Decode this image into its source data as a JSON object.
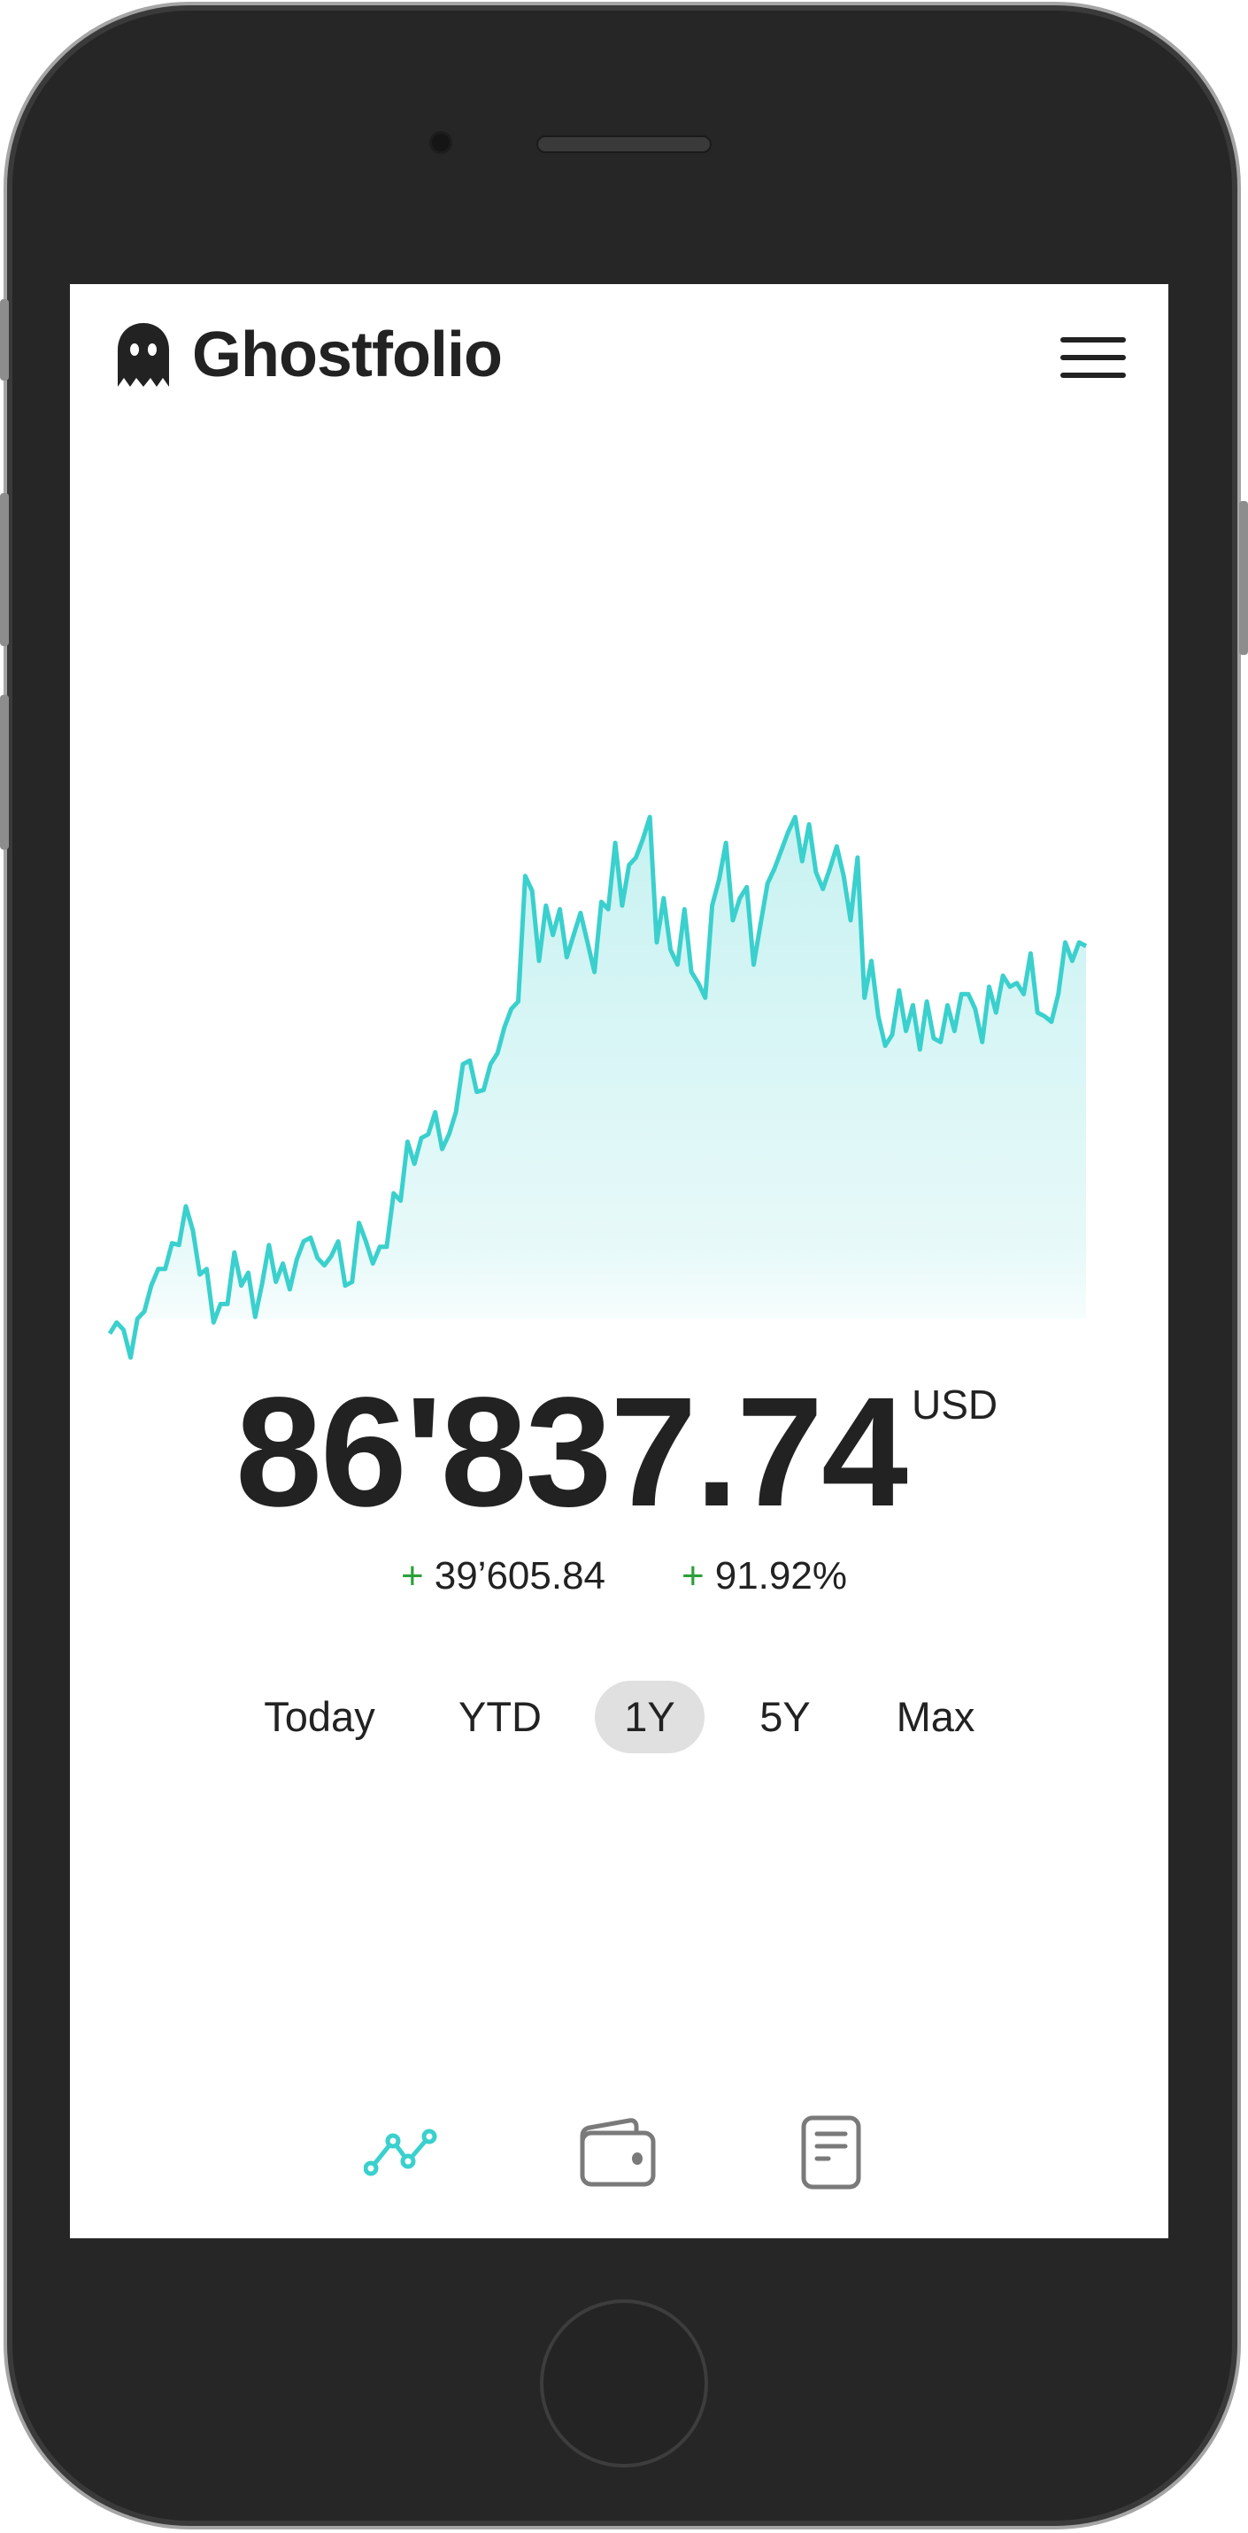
{
  "header": {
    "app_name": "Ghostfolio",
    "logo_icon": "ghost-icon",
    "menu_icon": "hamburger-menu-icon"
  },
  "portfolio": {
    "total_value": "86'837.74",
    "currency": "USD",
    "absolute_change": "39’605.84",
    "relative_change": "91.92%",
    "change_sign": "+",
    "positive_color": "#2ca03a"
  },
  "ranges": {
    "items": [
      {
        "label": "Today"
      },
      {
        "label": "YTD"
      },
      {
        "label": "1Y"
      },
      {
        "label": "5Y"
      },
      {
        "label": "Max"
      }
    ],
    "selected": "1Y"
  },
  "bottom_nav": {
    "items": [
      {
        "icon": "line-chart-icon",
        "active": true
      },
      {
        "icon": "wallet-icon",
        "active": false
      },
      {
        "icon": "document-icon",
        "active": false
      }
    ],
    "active_color": "#3ad0cd",
    "inactive_color": "#7a7a7a"
  },
  "chart_data": {
    "type": "area",
    "title": "",
    "xlabel": "",
    "ylabel": "",
    "grid": false,
    "legend": "none",
    "color": "#3ad0cd",
    "ylim": [
      44500,
      100500
    ],
    "values": [
      47232,
      48364,
      47609,
      44780,
      48741,
      49495,
      52136,
      53833,
      53833,
      56473,
      56285,
      60245,
      57794,
      53267,
      53833,
      48364,
      50250,
      50250,
      55530,
      52136,
      53456,
      48929,
      52324,
      56285,
      52513,
      54399,
      51758,
      54776,
      56662,
      57039,
      54965,
      54210,
      55153,
      56662,
      52136,
      52513,
      58548,
      56662,
      54399,
      56096,
      56096,
      61566,
      60811,
      66846,
      64583,
      67224,
      67601,
      69864,
      66092,
      67601,
      69864,
      74768,
      75145,
      71939,
      72127,
      74768,
      75899,
      78540,
      80426,
      81180,
      94005,
      92496,
      85329,
      90987,
      87970,
      90610,
      85706,
      87970,
      90233,
      87215,
      84198,
      91364,
      90610,
      97400,
      90987,
      95136,
      95891,
      97777,
      100040,
      87215,
      91742,
      86461,
      84952,
      90610,
      84198,
      83066,
      81557,
      90987,
      93628,
      97400,
      89478,
      91742,
      92873,
      84952,
      89101,
      93250,
      94759,
      96645,
      98531,
      100040,
      95514,
      99285,
      94382,
      92685,
      94759,
      97022,
      94005,
      89478,
      95891,
      81557,
      85329,
      79671,
      76654,
      77785,
      82312,
      78162,
      80803,
      76276,
      81180,
      77408,
      77031,
      80803,
      78162,
      81934,
      81934,
      80426,
      77031,
      82689,
      80048,
      83820,
      82689,
      83066,
      81934,
      86084,
      80048,
      79671,
      79105,
      81934,
      87215,
      85329,
      87215,
      86838
    ]
  }
}
